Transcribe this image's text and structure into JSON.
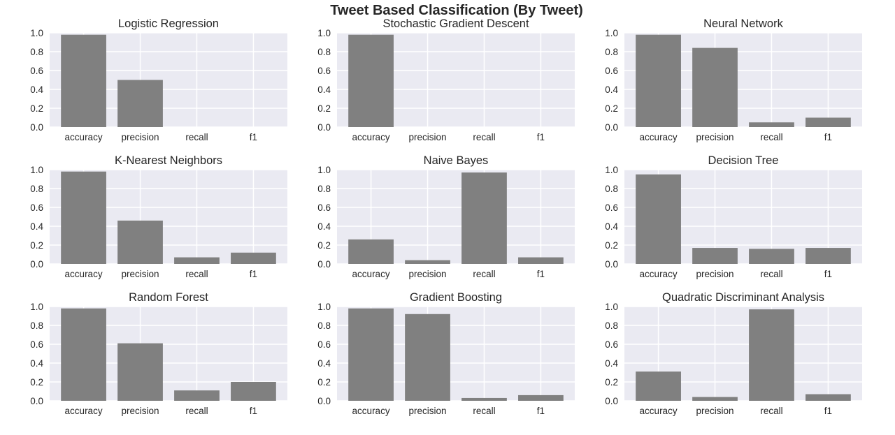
{
  "figure": {
    "title": "Tweet Based Classification (By Tweet)"
  },
  "style": {
    "plot_background": "#eaeaf2",
    "grid_color": "#ffffff",
    "bar_color": "#808080",
    "text_color": "#262626"
  },
  "chart_data": [
    {
      "type": "bar",
      "title": "Logistic Regression",
      "categories": [
        "accuracy",
        "precision",
        "recall",
        "f1"
      ],
      "values": [
        0.98,
        0.5,
        0.0,
        0.0
      ],
      "ylim": [
        0,
        1.0
      ],
      "yticks": [
        "0.0",
        "0.2",
        "0.4",
        "0.6",
        "0.8",
        "1.0"
      ],
      "grid": true
    },
    {
      "type": "bar",
      "title": "Stochastic Gradient Descent",
      "categories": [
        "accuracy",
        "precision",
        "recall",
        "f1"
      ],
      "values": [
        0.98,
        0.0,
        0.0,
        0.0
      ],
      "ylim": [
        0,
        1.0
      ],
      "yticks": [
        "0.0",
        "0.2",
        "0.4",
        "0.6",
        "0.8",
        "1.0"
      ],
      "grid": true
    },
    {
      "type": "bar",
      "title": "Neural Network",
      "categories": [
        "accuracy",
        "precision",
        "recall",
        "f1"
      ],
      "values": [
        0.98,
        0.84,
        0.05,
        0.1
      ],
      "ylim": [
        0,
        1.0
      ],
      "yticks": [
        "0.0",
        "0.2",
        "0.4",
        "0.6",
        "0.8",
        "1.0"
      ],
      "grid": true
    },
    {
      "type": "bar",
      "title": "K-Nearest Neighbors",
      "categories": [
        "accuracy",
        "precision",
        "recall",
        "f1"
      ],
      "values": [
        0.98,
        0.46,
        0.07,
        0.12
      ],
      "ylim": [
        0,
        1.0
      ],
      "yticks": [
        "0.0",
        "0.2",
        "0.4",
        "0.6",
        "0.8",
        "1.0"
      ],
      "grid": true
    },
    {
      "type": "bar",
      "title": "Naive Bayes",
      "categories": [
        "accuracy",
        "precision",
        "recall",
        "f1"
      ],
      "values": [
        0.26,
        0.04,
        0.97,
        0.07
      ],
      "ylim": [
        0,
        1.0
      ],
      "yticks": [
        "0.0",
        "0.2",
        "0.4",
        "0.6",
        "0.8",
        "1.0"
      ],
      "grid": true
    },
    {
      "type": "bar",
      "title": "Decision Tree",
      "categories": [
        "accuracy",
        "precision",
        "recall",
        "f1"
      ],
      "values": [
        0.95,
        0.17,
        0.16,
        0.17
      ],
      "ylim": [
        0,
        1.0
      ],
      "yticks": [
        "0.0",
        "0.2",
        "0.4",
        "0.6",
        "0.8",
        "1.0"
      ],
      "grid": true
    },
    {
      "type": "bar",
      "title": "Random Forest",
      "categories": [
        "accuracy",
        "precision",
        "recall",
        "f1"
      ],
      "values": [
        0.98,
        0.61,
        0.11,
        0.2
      ],
      "ylim": [
        0,
        1.0
      ],
      "yticks": [
        "0.0",
        "0.2",
        "0.4",
        "0.6",
        "0.8",
        "1.0"
      ],
      "grid": true
    },
    {
      "type": "bar",
      "title": "Gradient Boosting",
      "categories": [
        "accuracy",
        "precision",
        "recall",
        "f1"
      ],
      "values": [
        0.98,
        0.92,
        0.03,
        0.06
      ],
      "ylim": [
        0,
        1.0
      ],
      "yticks": [
        "0.0",
        "0.2",
        "0.4",
        "0.6",
        "0.8",
        "1.0"
      ],
      "grid": true
    },
    {
      "type": "bar",
      "title": "Quadratic Discriminant Analysis",
      "categories": [
        "accuracy",
        "precision",
        "recall",
        "f1"
      ],
      "values": [
        0.31,
        0.04,
        0.97,
        0.07
      ],
      "ylim": [
        0,
        1.0
      ],
      "yticks": [
        "0.0",
        "0.2",
        "0.4",
        "0.6",
        "0.8",
        "1.0"
      ],
      "grid": true
    }
  ]
}
